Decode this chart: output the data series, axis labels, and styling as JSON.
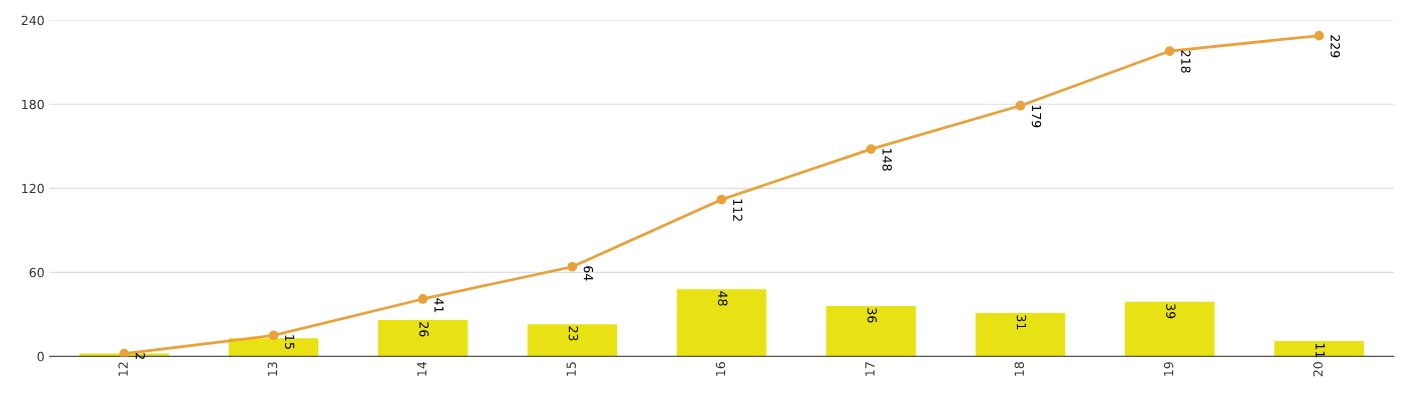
{
  "chart_data": {
    "type": "bar",
    "categories": [
      "12",
      "13",
      "14",
      "15",
      "16",
      "17",
      "18",
      "19",
      "20"
    ],
    "series": [
      {
        "color": "#e8e214",
        "values": [
          2,
          13,
          26,
          23,
          48,
          36,
          31,
          39,
          11
        ],
        "value_labels": [
          null,
          null,
          "26",
          "23",
          "48",
          "36",
          "31",
          "39",
          "11"
        ]
      },
      {
        "type": "line",
        "color": "#e9a23b",
        "values": [
          2,
          15,
          41,
          64,
          112,
          148,
          179,
          218,
          229
        ],
        "value_labels": [
          "2",
          "15",
          "41",
          "64",
          "112",
          "148",
          "179",
          "218",
          "229"
        ],
        "marker": "circle",
        "line_style": "solid"
      }
    ],
    "ylim": [
      0,
      240
    ],
    "yticks": [
      0,
      60,
      120,
      180,
      240
    ],
    "grid": "y",
    "legend": false
  }
}
